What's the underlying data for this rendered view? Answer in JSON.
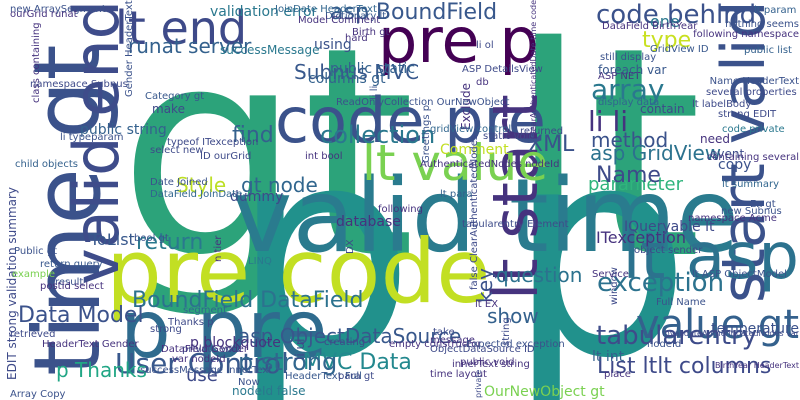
{
  "words": [
    {
      "text": "gt lt",
      "color": "#2ca37a",
      "rotate": 0
    },
    {
      "text": "p p",
      "color": "#21918c",
      "rotate": 0
    },
    {
      "text": "valid time",
      "color": "#2a7b8e",
      "rotate": 0
    },
    {
      "text": "pre code",
      "color": "#c2df23",
      "rotate": 0
    },
    {
      "text": "p pre",
      "color": "#2f6b8e",
      "rotate": 0
    },
    {
      "text": "time gt",
      "color": "#3b528b",
      "rotate": 0
    },
    {
      "text": "valid end",
      "color": "#3e4c8a",
      "rotate": 0
    },
    {
      "text": "code pre",
      "color": "#3b528b",
      "rotate": 0
    },
    {
      "text": "pre p",
      "color": "#440154",
      "rotate": 0
    },
    {
      "text": "lt end",
      "color": "#3e4a89",
      "rotate": 0
    },
    {
      "text": "lt start",
      "color": "#46337e",
      "rotate": 0
    },
    {
      "text": "start valid",
      "color": "#3b528b",
      "rotate": 0
    },
    {
      "text": "lt asp",
      "color": "#2c728e",
      "rotate": 0
    },
    {
      "text": "value gt",
      "color": "#34618d",
      "rotate": 0
    },
    {
      "text": "lt value",
      "color": "#7ad151",
      "rotate": 0
    },
    {
      "text": "User Control",
      "color": "#38588c",
      "rotate": 0
    },
    {
      "text": "BoundField DataField",
      "color": "#2c728e",
      "rotate": 0
    },
    {
      "text": "asp BoundField",
      "color": "#38588c",
      "rotate": 0
    },
    {
      "text": "code behind",
      "color": "#3b528b",
      "rotate": 0
    },
    {
      "text": "runat server",
      "color": "#34618d",
      "rotate": 0
    },
    {
      "text": "collection",
      "color": "#2a788e",
      "rotate": 0
    },
    {
      "text": "Subnus MVC",
      "color": "#38588c",
      "rotate": 0
    },
    {
      "text": "MVC Data",
      "color": "#23888e",
      "rotate": 0
    },
    {
      "text": "Data Model",
      "color": "#3b528b",
      "rotate": 0
    },
    {
      "text": "array",
      "color": "#2a788e",
      "rotate": 0
    },
    {
      "text": "li li",
      "color": "#46327e",
      "rotate": 0
    },
    {
      "text": "exception",
      "color": "#2c728e",
      "rotate": 0
    },
    {
      "text": "tabularentry",
      "color": "#3e4c8a",
      "rotate": 0
    },
    {
      "text": "List ltlt columns",
      "color": "#3e4a89",
      "rotate": 0
    },
    {
      "text": "return",
      "color": "#2a788e",
      "rotate": 0
    },
    {
      "text": "Style",
      "color": "#bddf26",
      "rotate": 0
    },
    {
      "text": "gt node",
      "color": "#31668e",
      "rotate": 0
    },
    {
      "text": "method",
      "color": "#3b528b",
      "rotate": 0
    },
    {
      "text": "parameter",
      "color": "#2fb47c",
      "rotate": 0
    },
    {
      "text": "question",
      "color": "#2c728e",
      "rotate": 0
    },
    {
      "text": "asp ObjectDataSource",
      "color": "#38588c",
      "rotate": 0
    },
    {
      "text": "p strong",
      "color": "#31668e",
      "rotate": 0
    },
    {
      "text": "p Thanks",
      "color": "#21a685",
      "rotate": 0
    },
    {
      "text": "find",
      "color": "#34618d",
      "rotate": 0
    },
    {
      "text": "XML",
      "color": "#3b528b",
      "rotate": 0
    },
    {
      "text": "asp GridView",
      "color": "#2c728e",
      "rotate": 0
    },
    {
      "text": "columns gt",
      "color": "#34618d",
      "rotate": 0
    },
    {
      "text": "using",
      "color": "#3b528b",
      "rotate": 0
    },
    {
      "text": "type",
      "color": "#c8e020",
      "rotate": 0
    },
    {
      "text": "one",
      "color": "#2a788e",
      "rotate": 0
    },
    {
      "text": "public static",
      "color": "#34618d",
      "rotate": 0
    },
    {
      "text": "Name",
      "color": "#3e4a89",
      "rotate": 0
    },
    {
      "text": "key",
      "color": "#3b528b",
      "rotate": 0
    },
    {
      "text": "show",
      "color": "#34618d",
      "rotate": 0
    },
    {
      "text": "ToList",
      "color": "#38588c",
      "rotate": 0
    },
    {
      "text": "use",
      "color": "#3e4a89",
      "rotate": 0
    },
    {
      "text": "Comment",
      "color": "#c2df23",
      "rotate": 0
    },
    {
      "text": "IQueryable lt",
      "color": "#3e4a89",
      "rotate": 0
    },
    {
      "text": "ITexception",
      "color": "#46327e",
      "rotate": 0
    },
    {
      "text": "p blockquote",
      "color": "#46337e",
      "rotate": 0
    },
    {
      "text": "OurNewObject gt",
      "color": "#7ad151",
      "rotate": 0
    },
    {
      "text": "nodeId false",
      "color": "#2a788e",
      "rotate": 0
    },
    {
      "text": "database",
      "color": "#46337e",
      "rotate": 0
    },
    {
      "text": "validation error",
      "color": "#2a788e",
      "rotate": 0
    },
    {
      "text": "make",
      "color": "#3e4a89",
      "rotate": 0
    },
    {
      "text": "public string",
      "color": "#34618d",
      "rotate": 0
    },
    {
      "text": "successMessage",
      "color": "#2a788e",
      "rotate": 0
    },
    {
      "text": "temperature",
      "color": "#3b528b",
      "rotate": 0
    },
    {
      "text": "AuthenticatedNodes nodeId",
      "color": "#46337e",
      "rotate": 0
    },
    {
      "text": "tabularentry Element",
      "color": "#3e4c8a",
      "rotate": 0
    },
    {
      "text": "following",
      "color": "#46327e",
      "rotate": 0
    },
    {
      "text": "Category gt",
      "color": "#38588c",
      "rotate": 0
    },
    {
      "text": "li typeparam",
      "color": "#3b528b",
      "rotate": 0
    },
    {
      "text": "new ArraySegment",
      "color": "#3b528b",
      "rotate": 0
    },
    {
      "text": "EDIT strong validation summary",
      "color": "#3e4a89",
      "rotate": 0
    },
    {
      "text": "dummy",
      "color": "#3e4a89",
      "rotate": 0
    },
    {
      "text": "lt int",
      "color": "#34618d",
      "rotate": 0
    },
    {
      "text": "nothing seems",
      "color": "#3b528b",
      "rotate": 0
    },
    {
      "text": "lt param",
      "color": "#34618d",
      "rotate": 0
    },
    {
      "text": "typeof ITexception",
      "color": "#3e4a89",
      "rotate": 0
    },
    {
      "text": "strong EDIT",
      "color": "#3e4a89",
      "rotate": 0
    },
    {
      "text": "ASP NET",
      "color": "#46327e",
      "rotate": 0
    },
    {
      "text": "Exclude",
      "color": "#46337e",
      "rotate": 0
    },
    {
      "text": "event",
      "color": "#3e4c8a",
      "rotate": 0
    },
    {
      "text": "copy",
      "color": "#3b528b",
      "rotate": 0
    },
    {
      "text": "need",
      "color": "#46337e",
      "rotate": 0
    },
    {
      "text": "returned",
      "color": "#3e4a89",
      "rotate": 0
    },
    {
      "text": "display data",
      "color": "#31668e",
      "rotate": 0
    },
    {
      "text": "foreach var",
      "color": "#38588c",
      "rotate": 0
    },
    {
      "text": "contain",
      "color": "#3e4a89",
      "rotate": 0
    },
    {
      "text": "lt summary",
      "color": "#31668e",
      "rotate": 0
    },
    {
      "text": "public list",
      "color": "#34618d",
      "rotate": 0
    },
    {
      "text": "code private",
      "color": "#2a788e",
      "rotate": 0
    },
    {
      "text": "Name HeaderText",
      "color": "#3b528b",
      "rotate": 0
    },
    {
      "text": "lt labelBody",
      "color": "#3e4a89",
      "rotate": 0
    },
    {
      "text": "Dictionary lt",
      "color": "#38588c",
      "rotate": 0
    },
    {
      "text": "Model Comment",
      "color": "#46337e",
      "rotate": 0
    },
    {
      "text": "JoinDate HeaderText",
      "color": "#31668e",
      "rotate": 0
    },
    {
      "text": "Birth gt",
      "color": "#46327e",
      "rotate": 0
    },
    {
      "text": "li ol",
      "color": "#3e4a89",
      "rotate": 0
    },
    {
      "text": "hard",
      "color": "#46327e",
      "rotate": 0
    },
    {
      "text": "new Subnus",
      "color": "#3b528b",
      "rotate": 0
    },
    {
      "text": "namespace Acme",
      "color": "#46337e",
      "rotate": 0
    },
    {
      "text": "LINQ",
      "color": "#2a788e",
      "rotate": 0
    },
    {
      "text": "segment",
      "color": "#31668e",
      "rotate": 0
    },
    {
      "text": "creating",
      "color": "#3e4a89",
      "rotate": 0
    },
    {
      "text": "Now",
      "color": "#3b528b",
      "rotate": 0
    },
    {
      "text": "HeaderText Full",
      "color": "#38588c",
      "rotate": 0
    },
    {
      "text": "time layout",
      "color": "#46337e",
      "rotate": 0
    },
    {
      "text": "take",
      "color": "#3e4a89",
      "rotate": 0
    },
    {
      "text": "message",
      "color": "#46327e",
      "rotate": 0
    },
    {
      "text": "Thanks p",
      "color": "#3e4a89",
      "rotate": 0
    },
    {
      "text": "return query",
      "color": "#38588c",
      "rotate": 0
    },
    {
      "text": "result",
      "color": "#3b528b",
      "rotate": 0
    },
    {
      "text": "example",
      "color": "#7ad151",
      "rotate": 0
    },
    {
      "text": "retrieved",
      "color": "#3e4a89",
      "rotate": 0
    },
    {
      "text": "Array Copy",
      "color": "#3b528b",
      "rotate": 0
    },
    {
      "text": "child objects",
      "color": "#34618d",
      "rotate": 0
    },
    {
      "text": "private void",
      "color": "#3e4a89",
      "rotate": 0
    },
    {
      "text": "Service",
      "color": "#46337e",
      "rotate": 0
    },
    {
      "text": "window",
      "color": "#3e4a89",
      "rotate": 0
    },
    {
      "text": "Full Name",
      "color": "#3b528b",
      "rotate": 0
    },
    {
      "text": "place",
      "color": "#46337e",
      "rotate": 0
    },
    {
      "text": "several properties",
      "color": "#3e4a89",
      "rotate": 0
    },
    {
      "text": "following namespace",
      "color": "#46327e",
      "rotate": 0
    },
    {
      "text": "Ex gt",
      "color": "#3b528b",
      "rotate": 0
    },
    {
      "text": "containing several",
      "color": "#46337e",
      "rotate": 0
    },
    {
      "text": "select new",
      "color": "#3e4a89",
      "rotate": 0
    },
    {
      "text": "int bool",
      "color": "#46337e",
      "rotate": 0
    },
    {
      "text": "DataField JoinDate",
      "color": "#31668e",
      "rotate": 0
    },
    {
      "text": "Date Joined",
      "color": "#3b528b",
      "rotate": 0
    },
    {
      "text": "ID ourGrid",
      "color": "#3e4a89",
      "rotate": 0
    },
    {
      "text": "HeaderText Gender",
      "color": "#46337e",
      "rotate": 0
    },
    {
      "text": "lt para",
      "color": "#34618d",
      "rotate": 0
    },
    {
      "text": "Greetings p",
      "color": "#3b528b",
      "rotate": 0
    },
    {
      "text": "lt EX",
      "color": "#46337e",
      "rotate": 0
    },
    {
      "text": "object sender",
      "color": "#3e4a89",
      "rotate": 0
    },
    {
      "text": "lt ASP ObjectModel",
      "color": "#3b528b",
      "rotate": 0
    },
    {
      "text": "GridView ID",
      "color": "#38588c",
      "rotate": 0
    },
    {
      "text": "DataField BirthYear",
      "color": "#46327e",
      "rotate": 0
    },
    {
      "text": "ASP DetailsView",
      "color": "#3e4a89",
      "rotate": 0
    },
    {
      "text": "still display",
      "color": "#3b528b",
      "rotate": 0
    },
    {
      "text": "gridView control",
      "color": "#31668e",
      "rotate": 0
    },
    {
      "text": "static void",
      "color": "#3e4a89",
      "rotate": 0
    },
    {
      "text": "db",
      "color": "#46337e",
      "rotate": 0
    },
    {
      "text": "li ul",
      "color": "#3e4a89",
      "rotate": 0
    },
    {
      "text": "empty constructor",
      "color": "#46327e",
      "rotate": 0
    },
    {
      "text": "Expected exception",
      "color": "#3b528b",
      "rotate": 0
    },
    {
      "text": "ObjectDataSource ID",
      "color": "#3e4a89",
      "rotate": 0
    },
    {
      "text": "innerText string",
      "color": "#46337e",
      "rotate": 0
    },
    {
      "text": "nodeId",
      "color": "#3b528b",
      "rotate": 0
    },
    {
      "text": "DX",
      "color": "#3e4a89",
      "rotate": 0
    },
    {
      "text": "bool gt",
      "color": "#3b528b",
      "rotate": 0
    },
    {
      "text": "class containing",
      "color": "#46337e",
      "rotate": 0
    },
    {
      "text": "namespace Subnus",
      "color": "#3e4a89",
      "rotate": 0
    },
    {
      "text": "Public gt",
      "color": "#3b528b",
      "rotate": 0
    },
    {
      "text": "n tier",
      "color": "#46337e",
      "rotate": 0
    },
    {
      "text": "para gt",
      "color": "#3e4a89",
      "rotate": 0
    },
    {
      "text": "postId select",
      "color": "#46327e",
      "rotate": 0
    },
    {
      "text": "private",
      "color": "#3e4a89",
      "rotate": 0
    },
    {
      "text": "li li",
      "color": "#3b528b",
      "rotate": 0
    },
    {
      "text": "ClearAuthenticatedDate time code",
      "color": "#46337e",
      "rotate": 0
    },
    {
      "text": "InvalidateAuthenticatedNodes var",
      "color": "#3e4a89",
      "rotate": 0
    },
    {
      "text": "ReadOnlyCollection OurNewObject",
      "color": "#3b528b",
      "rotate": 0
    },
    {
      "text": "public void",
      "color": "#46337e",
      "rotate": 0
    },
    {
      "text": "string",
      "color": "#3e4a89",
      "rotate": 0
    },
    {
      "text": "successMessage InnerText",
      "color": "#3b528b",
      "rotate": 0
    },
    {
      "text": "BirthYear HeaderText",
      "color": "#46337e",
      "rotate": 0
    },
    {
      "text": "false ClearAuthenticatedNodes",
      "color": "#3e4a89",
      "rotate": 0
    },
    {
      "text": "var nodeId",
      "color": "#46337e",
      "rotate": 0
    },
    {
      "text": "DataField Gender",
      "color": "#46327e",
      "rotate": 0
    },
    {
      "text": "Gender HeaderText",
      "color": "#3b528b",
      "rotate": 0
    },
    {
      "text": "strong",
      "color": "#3e4a89",
      "rotate": 0
    },
    {
      "text": "ourGrid runat",
      "color": "#46337e",
      "rotate": 0
    }
  ]
}
